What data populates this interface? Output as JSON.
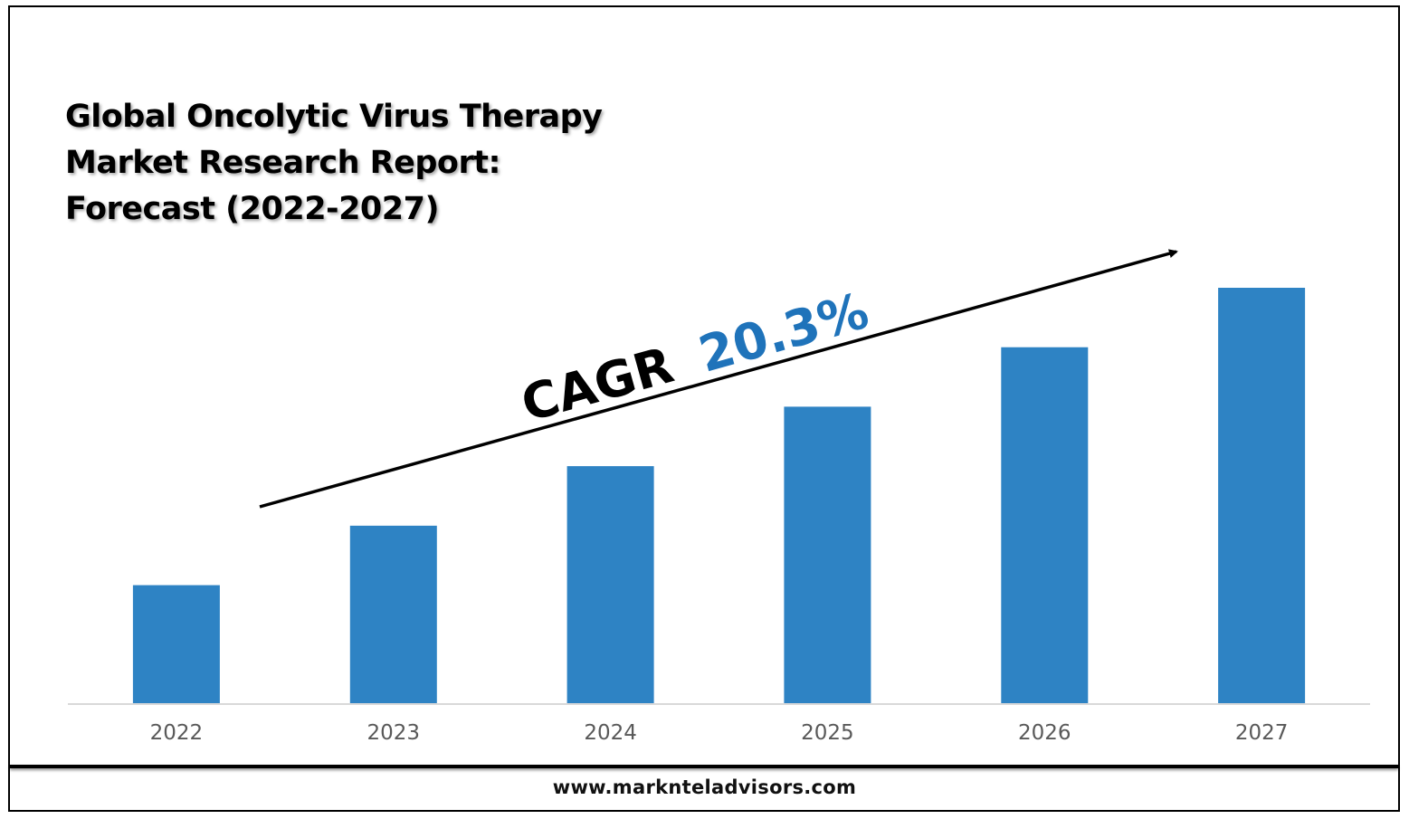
{
  "chart_data": {
    "type": "bar",
    "title": [
      "Global Oncolytic Virus Therapy",
      "Market Research Report:",
      "Forecast (2022-2027)"
    ],
    "categories": [
      "2022",
      "2023",
      "2024",
      "2025",
      "2026",
      "2027"
    ],
    "values": [
      1.0,
      1.5,
      2.0,
      2.5,
      3.0,
      3.5
    ],
    "ylim": [
      0,
      3.5
    ],
    "y_axis_visible": false,
    "grid": false,
    "bar_color": "#2E83C4",
    "annotation": {
      "label": "CAGR",
      "value": "20.3%",
      "label_color": "#000000",
      "value_color": "#1F73BA",
      "arrow": "upward-right trend arrow"
    }
  },
  "footer": {
    "url": "www.marknteladvisors.com"
  }
}
